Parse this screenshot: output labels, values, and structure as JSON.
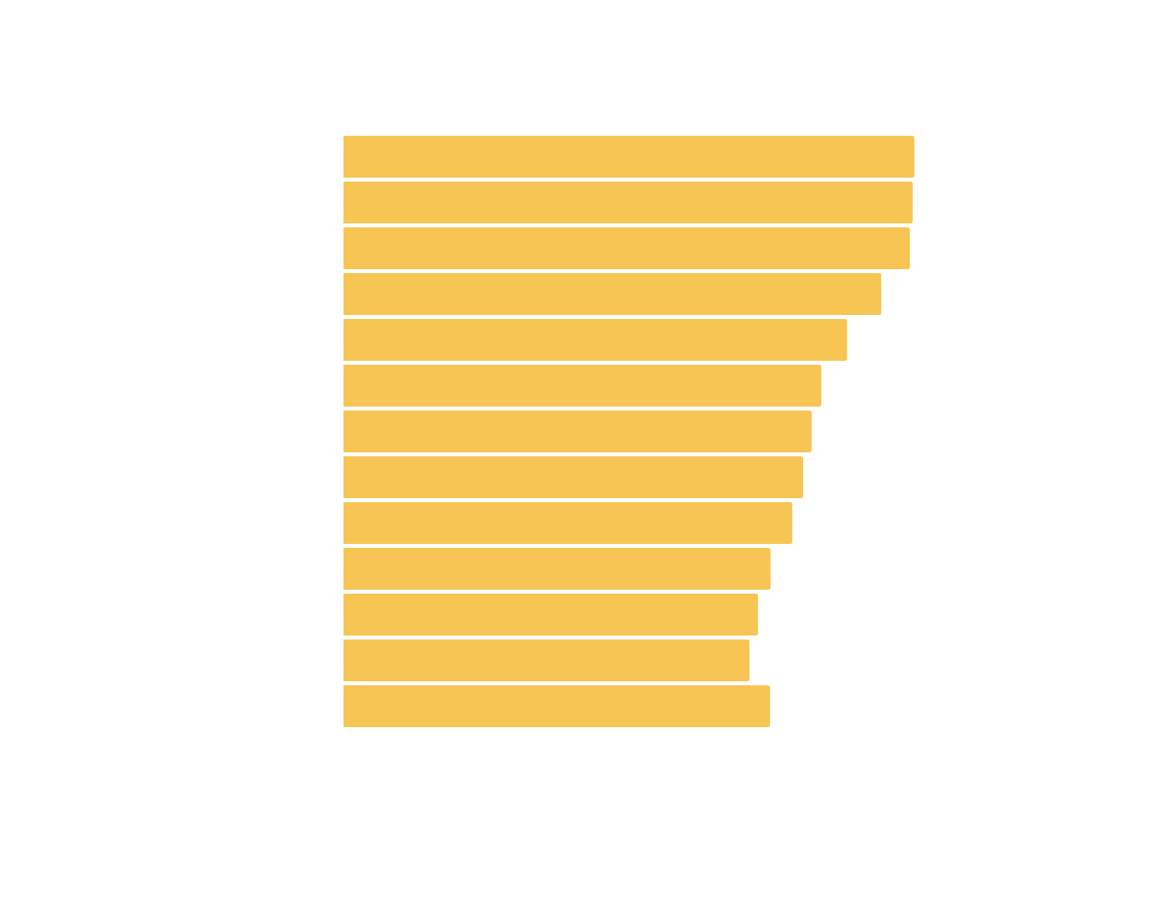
{
  "chart_data": {
    "type": "bar",
    "orientation": "horizontal",
    "categories": [
      null,
      null,
      null,
      null,
      null,
      null,
      null,
      null,
      null,
      null,
      null,
      null,
      null
    ],
    "values": [
      100,
      99.7,
      99.2,
      94.2,
      88.2,
      83.7,
      82.0,
      80.5,
      78.6,
      74.8,
      72.6,
      71.1,
      74.7
    ],
    "color": "#f6c554",
    "xlim": [
      0,
      100
    ]
  }
}
